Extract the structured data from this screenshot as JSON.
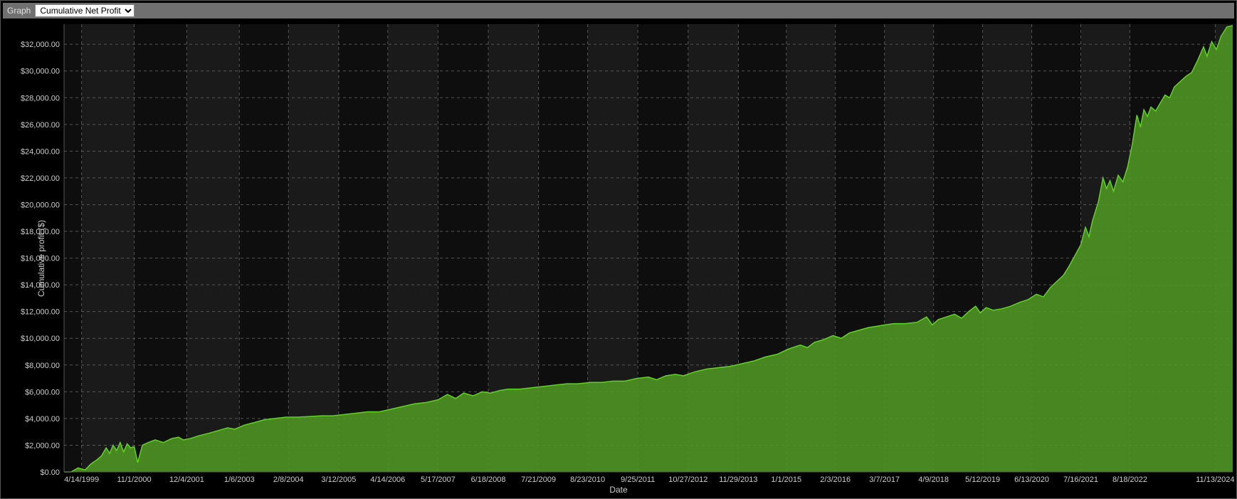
{
  "toolbar": {
    "label": "Graph",
    "dropdown_selected": "Cumulative Net Profit",
    "dropdown_options": [
      "Cumulative Net Profit"
    ]
  },
  "chart": {
    "type": "area",
    "ylabel": "Cumulative profit ($)",
    "xlabel": "Date",
    "background_color": "#000000",
    "plot_band_color_a": "#0e0e0e",
    "plot_band_color_b": "#1a1a1a",
    "grid_color": "#555555",
    "grid_dash": "4 4",
    "axis_text_color": "#cccccc",
    "label_fontsize": 12,
    "tick_fontsize": 11,
    "line_color": "#5fd321",
    "fill_color": "#4f9425",
    "fill_opacity": 0.9,
    "line_width": 1.5,
    "ylim": [
      0,
      33500
    ],
    "ytick_step": 2000,
    "ytick_format_prefix": "$",
    "ytick_format_suffix": ".00",
    "yticks": [
      {
        "v": 0,
        "label": "$0.00"
      },
      {
        "v": 2000,
        "label": "$2,000.00"
      },
      {
        "v": 4000,
        "label": "$4,000.00"
      },
      {
        "v": 6000,
        "label": "$6,000.00"
      },
      {
        "v": 8000,
        "label": "$8,000.00"
      },
      {
        "v": 10000,
        "label": "$10,000.00"
      },
      {
        "v": 12000,
        "label": "$12,000.00"
      },
      {
        "v": 14000,
        "label": "$14,000.00"
      },
      {
        "v": 16000,
        "label": "$16,000.00"
      },
      {
        "v": 18000,
        "label": "$18,000.00"
      },
      {
        "v": 20000,
        "label": "$20,000.00"
      },
      {
        "v": 22000,
        "label": "$22,000.00"
      },
      {
        "v": 24000,
        "label": "$24,000.00"
      },
      {
        "v": 26000,
        "label": "$26,000.00"
      },
      {
        "v": 28000,
        "label": "$28,000.00"
      },
      {
        "v": 30000,
        "label": "$30,000.00"
      },
      {
        "v": 32000,
        "label": "$32,000.00"
      }
    ],
    "xlim": [
      0,
      100
    ],
    "xticks": [
      {
        "v": 1.5,
        "label": "4/14/1999"
      },
      {
        "v": 6.0,
        "label": "11/1/2000"
      },
      {
        "v": 10.5,
        "label": "12/4/2001"
      },
      {
        "v": 15.0,
        "label": "1/6/2003"
      },
      {
        "v": 19.2,
        "label": "2/8/2004"
      },
      {
        "v": 23.5,
        "label": "3/12/2005"
      },
      {
        "v": 27.7,
        "label": "4/14/2006"
      },
      {
        "v": 32.0,
        "label": "5/17/2007"
      },
      {
        "v": 36.3,
        "label": "6/18/2008"
      },
      {
        "v": 40.6,
        "label": "7/21/2009"
      },
      {
        "v": 44.8,
        "label": "8/23/2010"
      },
      {
        "v": 49.1,
        "label": "9/25/2011"
      },
      {
        "v": 53.4,
        "label": "10/27/2012"
      },
      {
        "v": 57.7,
        "label": "11/29/2013"
      },
      {
        "v": 61.8,
        "label": "1/1/2015"
      },
      {
        "v": 66.0,
        "label": "2/3/2016"
      },
      {
        "v": 70.2,
        "label": "3/7/2017"
      },
      {
        "v": 74.4,
        "label": "4/9/2018"
      },
      {
        "v": 78.6,
        "label": "5/12/2019"
      },
      {
        "v": 82.8,
        "label": "6/13/2020"
      },
      {
        "v": 87.0,
        "label": "7/16/2021"
      },
      {
        "v": 91.2,
        "label": "8/18/2022"
      },
      {
        "v": 98.5,
        "label": "11/13/2024"
      }
    ],
    "series": [
      {
        "x": 0.0,
        "y": 0
      },
      {
        "x": 0.6,
        "y": 0
      },
      {
        "x": 1.2,
        "y": 300
      },
      {
        "x": 1.8,
        "y": 150
      },
      {
        "x": 2.3,
        "y": 600
      },
      {
        "x": 2.8,
        "y": 900
      },
      {
        "x": 3.2,
        "y": 1200
      },
      {
        "x": 3.6,
        "y": 1800
      },
      {
        "x": 3.9,
        "y": 1400
      },
      {
        "x": 4.2,
        "y": 2000
      },
      {
        "x": 4.5,
        "y": 1600
      },
      {
        "x": 4.8,
        "y": 2200
      },
      {
        "x": 5.1,
        "y": 1500
      },
      {
        "x": 5.4,
        "y": 2100
      },
      {
        "x": 5.7,
        "y": 1800
      },
      {
        "x": 6.0,
        "y": 1900
      },
      {
        "x": 6.3,
        "y": 700
      },
      {
        "x": 6.7,
        "y": 2000
      },
      {
        "x": 7.2,
        "y": 2200
      },
      {
        "x": 7.8,
        "y": 2400
      },
      {
        "x": 8.5,
        "y": 2200
      },
      {
        "x": 9.2,
        "y": 2500
      },
      {
        "x": 9.8,
        "y": 2600
      },
      {
        "x": 10.2,
        "y": 2400
      },
      {
        "x": 10.8,
        "y": 2500
      },
      {
        "x": 11.5,
        "y": 2700
      },
      {
        "x": 12.4,
        "y": 2900
      },
      {
        "x": 13.2,
        "y": 3100
      },
      {
        "x": 14.0,
        "y": 3300
      },
      {
        "x": 14.6,
        "y": 3200
      },
      {
        "x": 15.4,
        "y": 3500
      },
      {
        "x": 16.3,
        "y": 3700
      },
      {
        "x": 17.1,
        "y": 3900
      },
      {
        "x": 18.0,
        "y": 4000
      },
      {
        "x": 19.0,
        "y": 4100
      },
      {
        "x": 20.0,
        "y": 4100
      },
      {
        "x": 21.0,
        "y": 4150
      },
      {
        "x": 22.0,
        "y": 4200
      },
      {
        "x": 23.0,
        "y": 4200
      },
      {
        "x": 24.0,
        "y": 4300
      },
      {
        "x": 25.0,
        "y": 4400
      },
      {
        "x": 26.0,
        "y": 4500
      },
      {
        "x": 27.0,
        "y": 4500
      },
      {
        "x": 28.0,
        "y": 4700
      },
      {
        "x": 29.0,
        "y": 4900
      },
      {
        "x": 30.0,
        "y": 5100
      },
      {
        "x": 31.0,
        "y": 5200
      },
      {
        "x": 32.0,
        "y": 5400
      },
      {
        "x": 32.8,
        "y": 5800
      },
      {
        "x": 33.5,
        "y": 5500
      },
      {
        "x": 34.2,
        "y": 5900
      },
      {
        "x": 35.0,
        "y": 5700
      },
      {
        "x": 35.8,
        "y": 6000
      },
      {
        "x": 36.5,
        "y": 5900
      },
      {
        "x": 37.3,
        "y": 6100
      },
      {
        "x": 38.0,
        "y": 6200
      },
      {
        "x": 39.0,
        "y": 6200
      },
      {
        "x": 40.0,
        "y": 6300
      },
      {
        "x": 41.0,
        "y": 6400
      },
      {
        "x": 42.0,
        "y": 6500
      },
      {
        "x": 43.0,
        "y": 6600
      },
      {
        "x": 44.0,
        "y": 6600
      },
      {
        "x": 45.0,
        "y": 6700
      },
      {
        "x": 46.0,
        "y": 6700
      },
      {
        "x": 47.0,
        "y": 6800
      },
      {
        "x": 48.0,
        "y": 6800
      },
      {
        "x": 49.0,
        "y": 7000
      },
      {
        "x": 50.0,
        "y": 7100
      },
      {
        "x": 50.7,
        "y": 6900
      },
      {
        "x": 51.5,
        "y": 7200
      },
      {
        "x": 52.3,
        "y": 7300
      },
      {
        "x": 53.0,
        "y": 7200
      },
      {
        "x": 54.0,
        "y": 7500
      },
      {
        "x": 55.0,
        "y": 7700
      },
      {
        "x": 56.0,
        "y": 7800
      },
      {
        "x": 57.0,
        "y": 7900
      },
      {
        "x": 58.0,
        "y": 8100
      },
      {
        "x": 59.0,
        "y": 8300
      },
      {
        "x": 60.0,
        "y": 8600
      },
      {
        "x": 61.0,
        "y": 8800
      },
      {
        "x": 62.0,
        "y": 9200
      },
      {
        "x": 63.0,
        "y": 9500
      },
      {
        "x": 63.6,
        "y": 9300
      },
      {
        "x": 64.2,
        "y": 9700
      },
      {
        "x": 65.0,
        "y": 9900
      },
      {
        "x": 65.8,
        "y": 10200
      },
      {
        "x": 66.5,
        "y": 10000
      },
      {
        "x": 67.2,
        "y": 10400
      },
      {
        "x": 68.0,
        "y": 10600
      },
      {
        "x": 68.8,
        "y": 10800
      },
      {
        "x": 69.5,
        "y": 10900
      },
      {
        "x": 70.2,
        "y": 11000
      },
      {
        "x": 71.0,
        "y": 11100
      },
      {
        "x": 72.0,
        "y": 11100
      },
      {
        "x": 73.0,
        "y": 11200
      },
      {
        "x": 73.8,
        "y": 11600
      },
      {
        "x": 74.3,
        "y": 11000
      },
      {
        "x": 74.8,
        "y": 11400
      },
      {
        "x": 75.5,
        "y": 11600
      },
      {
        "x": 76.2,
        "y": 11800
      },
      {
        "x": 76.8,
        "y": 11500
      },
      {
        "x": 77.4,
        "y": 12000
      },
      {
        "x": 78.0,
        "y": 12400
      },
      {
        "x": 78.4,
        "y": 11900
      },
      {
        "x": 78.9,
        "y": 12300
      },
      {
        "x": 79.5,
        "y": 12100
      },
      {
        "x": 80.2,
        "y": 12200
      },
      {
        "x": 81.0,
        "y": 12400
      },
      {
        "x": 81.8,
        "y": 12700
      },
      {
        "x": 82.5,
        "y": 12900
      },
      {
        "x": 83.2,
        "y": 13300
      },
      {
        "x": 83.8,
        "y": 13100
      },
      {
        "x": 84.4,
        "y": 13800
      },
      {
        "x": 85.0,
        "y": 14300
      },
      {
        "x": 85.5,
        "y": 14700
      },
      {
        "x": 86.0,
        "y": 15400
      },
      {
        "x": 86.5,
        "y": 16200
      },
      {
        "x": 87.0,
        "y": 17000
      },
      {
        "x": 87.4,
        "y": 18300
      },
      {
        "x": 87.7,
        "y": 17600
      },
      {
        "x": 88.0,
        "y": 18800
      },
      {
        "x": 88.5,
        "y": 20200
      },
      {
        "x": 88.9,
        "y": 22000
      },
      {
        "x": 89.2,
        "y": 21200
      },
      {
        "x": 89.5,
        "y": 21800
      },
      {
        "x": 89.8,
        "y": 21000
      },
      {
        "x": 90.2,
        "y": 22200
      },
      {
        "x": 90.6,
        "y": 21700
      },
      {
        "x": 91.0,
        "y": 22800
      },
      {
        "x": 91.4,
        "y": 24500
      },
      {
        "x": 91.8,
        "y": 26700
      },
      {
        "x": 92.1,
        "y": 25800
      },
      {
        "x": 92.4,
        "y": 27100
      },
      {
        "x": 92.7,
        "y": 26600
      },
      {
        "x": 93.0,
        "y": 27300
      },
      {
        "x": 93.4,
        "y": 27000
      },
      {
        "x": 93.8,
        "y": 27600
      },
      {
        "x": 94.2,
        "y": 28200
      },
      {
        "x": 94.6,
        "y": 28000
      },
      {
        "x": 95.0,
        "y": 28800
      },
      {
        "x": 95.5,
        "y": 29200
      },
      {
        "x": 96.0,
        "y": 29600
      },
      {
        "x": 96.5,
        "y": 29900
      },
      {
        "x": 97.0,
        "y": 30800
      },
      {
        "x": 97.5,
        "y": 31800
      },
      {
        "x": 97.8,
        "y": 31100
      },
      {
        "x": 98.2,
        "y": 32200
      },
      {
        "x": 98.6,
        "y": 31600
      },
      {
        "x": 99.0,
        "y": 32600
      },
      {
        "x": 99.5,
        "y": 33300
      },
      {
        "x": 100.0,
        "y": 33400
      }
    ]
  }
}
